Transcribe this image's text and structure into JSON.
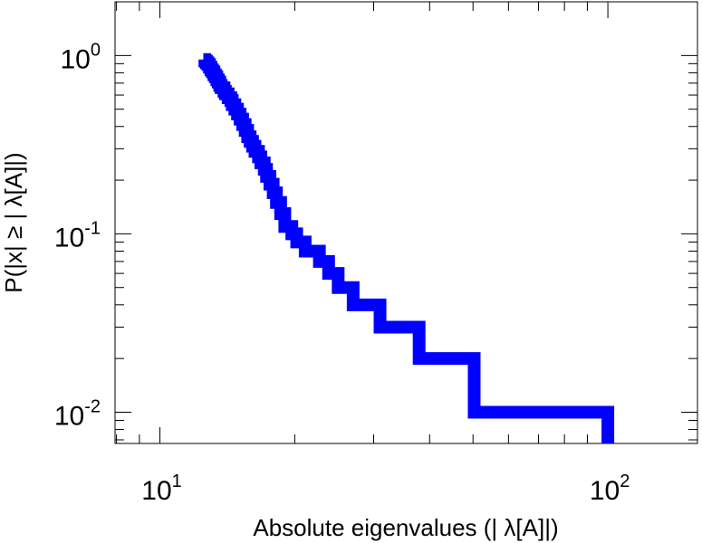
{
  "chart_data": {
    "type": "line",
    "title": "",
    "xlabel": "Absolute eigenvalues (|     λ[A]|)",
    "ylabel": "P(|x|  ≥ | λ[A]|)",
    "xscale": "log",
    "yscale": "log",
    "xlim": [
      7.94,
      158.5
    ],
    "ylim": [
      0.00668,
      2.0
    ],
    "x_ticks": [
      {
        "value": 10,
        "base": "10",
        "exp": "1"
      },
      {
        "value": 100,
        "base": "10",
        "exp": "2"
      }
    ],
    "y_ticks": [
      {
        "value": 1,
        "base": "10",
        "exp": "0"
      },
      {
        "value": 0.1,
        "base": "10",
        "exp": "-1"
      },
      {
        "value": 0.01,
        "base": "10",
        "exp": "-2"
      }
    ],
    "grid": false,
    "legend": "none",
    "series": [
      {
        "color": "#0000ff",
        "step": true,
        "x": [
          12.5,
          12.6,
          12.7,
          12.8,
          12.9,
          13.0,
          13.1,
          13.2,
          13.3,
          13.4,
          13.5,
          13.6,
          13.7,
          13.9,
          14.0,
          14.2,
          14.4,
          14.5,
          14.7,
          14.9,
          15.1,
          15.3,
          15.5,
          15.7,
          15.9,
          16.1,
          16.3,
          16.6,
          16.8,
          17.1,
          17.3,
          17.6,
          17.9,
          18.2,
          18.6,
          19.0,
          19.7,
          20.2,
          21.1,
          22.7,
          23.8,
          25.0,
          27.0,
          31.0,
          37.9,
          50.3,
          100.0
        ],
        "y": [
          0.95,
          0.93,
          0.91,
          0.89,
          0.86,
          0.83,
          0.81,
          0.78,
          0.76,
          0.73,
          0.71,
          0.68,
          0.66,
          0.63,
          0.61,
          0.58,
          0.56,
          0.53,
          0.5,
          0.47,
          0.44,
          0.41,
          0.38,
          0.35,
          0.33,
          0.31,
          0.29,
          0.27,
          0.25,
          0.23,
          0.21,
          0.19,
          0.17,
          0.15,
          0.13,
          0.11,
          0.1,
          0.09,
          0.08,
          0.07,
          0.06,
          0.05,
          0.04,
          0.03,
          0.02,
          0.01,
          0.01
        ]
      }
    ]
  }
}
